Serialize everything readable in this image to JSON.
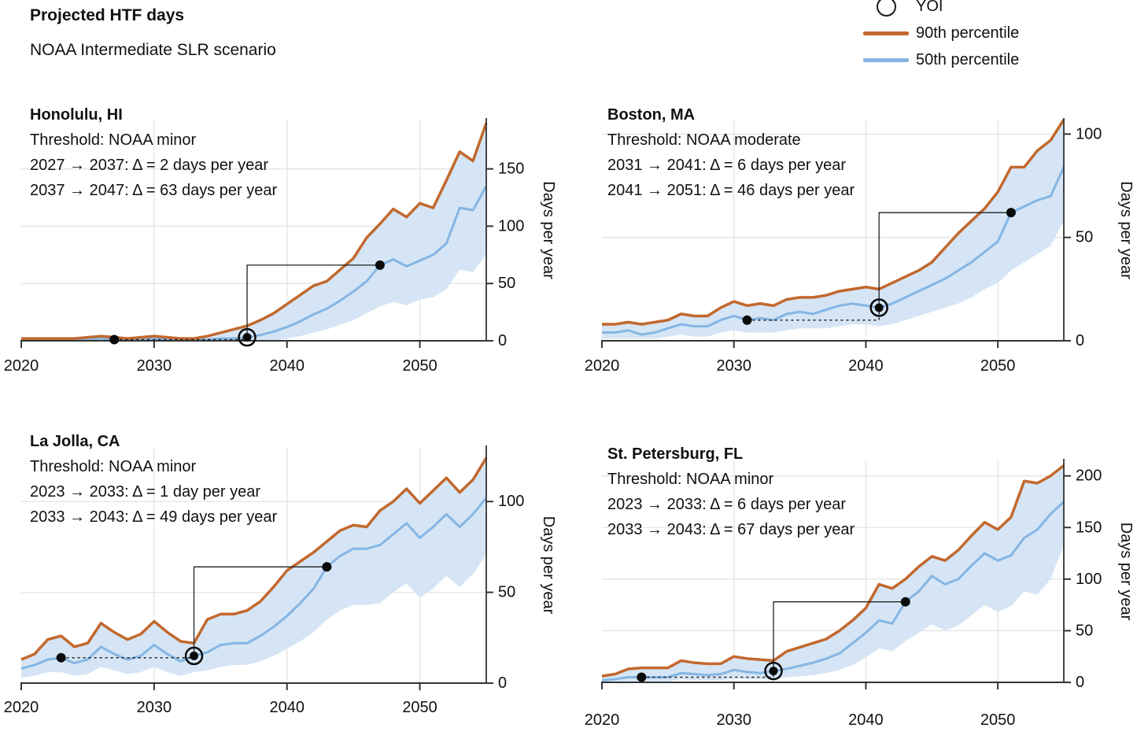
{
  "header": {
    "title": "Projected HTF days",
    "subtitle": "NOAA Intermediate SLR scenario"
  },
  "legend": {
    "items": [
      {
        "label": "YOI",
        "marker": "open-circle",
        "color": "#1a1a1a"
      },
      {
        "label": "90th percentile",
        "marker": "line",
        "color": "#c2682e"
      },
      {
        "label": "50th percentile",
        "marker": "line",
        "color": "#85b5e3"
      }
    ]
  },
  "colors": {
    "p90": "#c2682e",
    "p50": "#85b5e3",
    "band": "#d5e5f5",
    "axis": "#333333",
    "grid": "#e4e4e4",
    "marker": "#0a0a0a"
  },
  "chart_data": [
    {
      "type": "line",
      "location": "Honolulu, HI",
      "threshold": "Threshold: NOAA minor",
      "delta_lines": [
        "2027 → 2037: Δ = 2 days per year",
        "2037 → 2047: Δ = 63 days per year"
      ],
      "ylabel": "Days per year",
      "x": {
        "start": 2020,
        "end": 2055,
        "step": 1
      },
      "x_ticks": [
        2020,
        2030,
        2040,
        2050
      ],
      "y_ticks": [
        0,
        50,
        100,
        150
      ],
      "ylim": [
        0,
        193
      ],
      "series": [
        {
          "name": "90th percentile",
          "color": "#c2682e",
          "values": [
            2,
            2,
            2,
            2,
            2,
            3,
            4,
            3,
            2,
            3,
            4,
            3,
            2,
            2,
            4,
            7,
            10,
            13,
            18,
            24,
            32,
            40,
            48,
            52,
            62,
            72,
            90,
            102,
            115,
            108,
            120,
            116,
            140,
            165,
            157,
            190
          ]
        },
        {
          "name": "50th percentile",
          "color": "#85b5e3",
          "values": [
            1,
            1,
            1,
            1,
            1,
            1,
            2,
            1,
            1,
            1,
            2,
            1,
            1,
            1,
            1,
            2,
            2,
            3,
            5,
            8,
            12,
            17,
            23,
            28,
            35,
            43,
            52,
            66,
            71,
            65,
            70,
            75,
            85,
            116,
            114,
            135
          ]
        },
        {
          "name": "band_low",
          "color": "#d5e5f5",
          "values": [
            0,
            0,
            0,
            0,
            0,
            0,
            0,
            0,
            0,
            0,
            0,
            0,
            0,
            0,
            0,
            0,
            0,
            0,
            0,
            0,
            2,
            4,
            7,
            10,
            14,
            18,
            24,
            30,
            34,
            31,
            36,
            38,
            45,
            62,
            60,
            75
          ]
        }
      ],
      "markers": {
        "start": {
          "year": 2027,
          "value": 1
        },
        "yoi": {
          "year": 2037,
          "value": 3
        },
        "end": {
          "year": 2047,
          "value": 66
        }
      }
    },
    {
      "type": "line",
      "location": "Boston, MA",
      "threshold": "Threshold: NOAA moderate",
      "delta_lines": [
        "2031 → 2041: Δ = 6 days per year",
        "2041 → 2051: Δ = 46 days per year"
      ],
      "ylabel": "Days per year",
      "x": {
        "start": 2020,
        "end": 2055,
        "step": 1
      },
      "x_ticks": [
        2020,
        2030,
        2040,
        2050
      ],
      "y_ticks": [
        0,
        50,
        100
      ],
      "ylim": [
        0,
        107
      ],
      "series": [
        {
          "name": "90th percentile",
          "color": "#c2682e",
          "values": [
            8,
            8,
            9,
            8,
            9,
            10,
            13,
            12,
            12,
            16,
            19,
            17,
            18,
            17,
            20,
            21,
            21,
            22,
            24,
            25,
            26,
            25,
            28,
            31,
            34,
            38,
            45,
            52,
            58,
            64,
            72,
            84,
            84,
            92,
            97,
            107
          ]
        },
        {
          "name": "50th percentile",
          "color": "#85b5e3",
          "values": [
            4,
            4,
            5,
            3,
            4,
            6,
            8,
            7,
            7,
            10,
            12,
            10,
            11,
            10,
            13,
            14,
            13,
            15,
            17,
            18,
            17,
            16,
            18,
            21,
            24,
            27,
            30,
            34,
            38,
            43,
            48,
            62,
            65,
            68,
            70,
            84
          ]
        },
        {
          "name": "band_low",
          "color": "#d5e5f5",
          "values": [
            1,
            1,
            1,
            1,
            1,
            2,
            3,
            2,
            2,
            4,
            5,
            4,
            4,
            4,
            5,
            6,
            6,
            6,
            7,
            8,
            8,
            7,
            8,
            10,
            12,
            14,
            16,
            18,
            21,
            25,
            28,
            34,
            38,
            42,
            46,
            58
          ]
        }
      ],
      "markers": {
        "start": {
          "year": 2031,
          "value": 10
        },
        "yoi": {
          "year": 2041,
          "value": 16
        },
        "end": {
          "year": 2051,
          "value": 62
        }
      }
    },
    {
      "type": "line",
      "location": "La Jolla, CA",
      "threshold": "Threshold: NOAA minor",
      "delta_lines": [
        "2023 → 2033: Δ = 1 day per year",
        "2033 → 2043: Δ = 49 days per year"
      ],
      "ylabel": "Days per year",
      "x": {
        "start": 2020,
        "end": 2055,
        "step": 1
      },
      "x_ticks": [
        2020,
        2030,
        2040,
        2050
      ],
      "y_ticks": [
        0,
        50,
        100
      ],
      "ylim": [
        0,
        130
      ],
      "series": [
        {
          "name": "90th percentile",
          "color": "#c2682e",
          "values": [
            13,
            16,
            24,
            26,
            20,
            22,
            33,
            28,
            24,
            27,
            34,
            28,
            23,
            22,
            35,
            38,
            38,
            40,
            45,
            53,
            62,
            67,
            72,
            78,
            84,
            87,
            86,
            95,
            100,
            107,
            99,
            106,
            113,
            105,
            112,
            124
          ]
        },
        {
          "name": "50th percentile",
          "color": "#85b5e3",
          "values": [
            8,
            10,
            13,
            14,
            11,
            13,
            20,
            16,
            13,
            15,
            21,
            16,
            12,
            15,
            17,
            21,
            22,
            22,
            26,
            31,
            37,
            44,
            52,
            64,
            70,
            74,
            74,
            76,
            82,
            88,
            80,
            86,
            93,
            86,
            93,
            102
          ]
        },
        {
          "name": "band_low",
          "color": "#d5e5f5",
          "values": [
            3,
            4,
            6,
            6,
            4,
            5,
            9,
            7,
            5,
            6,
            9,
            6,
            4,
            6,
            7,
            9,
            10,
            10,
            12,
            15,
            19,
            23,
            28,
            35,
            40,
            43,
            43,
            44,
            50,
            55,
            47,
            52,
            59,
            53,
            60,
            71
          ]
        }
      ],
      "markers": {
        "start": {
          "year": 2023,
          "value": 14
        },
        "yoi": {
          "year": 2033,
          "value": 15
        },
        "end": {
          "year": 2043,
          "value": 64
        }
      }
    },
    {
      "type": "line",
      "location": "St. Petersburg, FL",
      "threshold": "Threshold: NOAA minor",
      "delta_lines": [
        "2023 → 2033: Δ = 6 days per year",
        "2033 → 2043: Δ = 67 days per year"
      ],
      "ylabel": "Days per year",
      "x": {
        "start": 2020,
        "end": 2055,
        "step": 1
      },
      "x_ticks": [
        2020,
        2030,
        2040,
        2050
      ],
      "y_ticks": [
        0,
        50,
        100,
        150,
        200
      ],
      "ylim": [
        0,
        215
      ],
      "series": [
        {
          "name": "90th percentile",
          "color": "#c2682e",
          "values": [
            6,
            8,
            13,
            14,
            14,
            14,
            21,
            19,
            18,
            18,
            25,
            23,
            22,
            21,
            30,
            34,
            38,
            42,
            50,
            60,
            72,
            95,
            91,
            100,
            112,
            122,
            118,
            128,
            142,
            155,
            148,
            160,
            195,
            193,
            200,
            210
          ]
        },
        {
          "name": "50th percentile",
          "color": "#85b5e3",
          "values": [
            2,
            3,
            5,
            5,
            5,
            5,
            9,
            8,
            7,
            8,
            12,
            10,
            9,
            11,
            13,
            16,
            19,
            23,
            28,
            38,
            48,
            60,
            57,
            78,
            88,
            103,
            95,
            100,
            113,
            125,
            118,
            123,
            140,
            148,
            163,
            175
          ]
        },
        {
          "name": "band_low",
          "color": "#d5e5f5",
          "values": [
            0,
            0,
            1,
            1,
            1,
            1,
            3,
            2,
            2,
            2,
            4,
            3,
            3,
            3,
            5,
            6,
            7,
            9,
            12,
            17,
            24,
            33,
            30,
            40,
            48,
            56,
            50,
            55,
            65,
            75,
            68,
            74,
            88,
            85,
            100,
            133
          ]
        }
      ],
      "markers": {
        "start": {
          "year": 2023,
          "value": 5
        },
        "yoi": {
          "year": 2033,
          "value": 11
        },
        "end": {
          "year": 2043,
          "value": 78
        }
      }
    }
  ]
}
